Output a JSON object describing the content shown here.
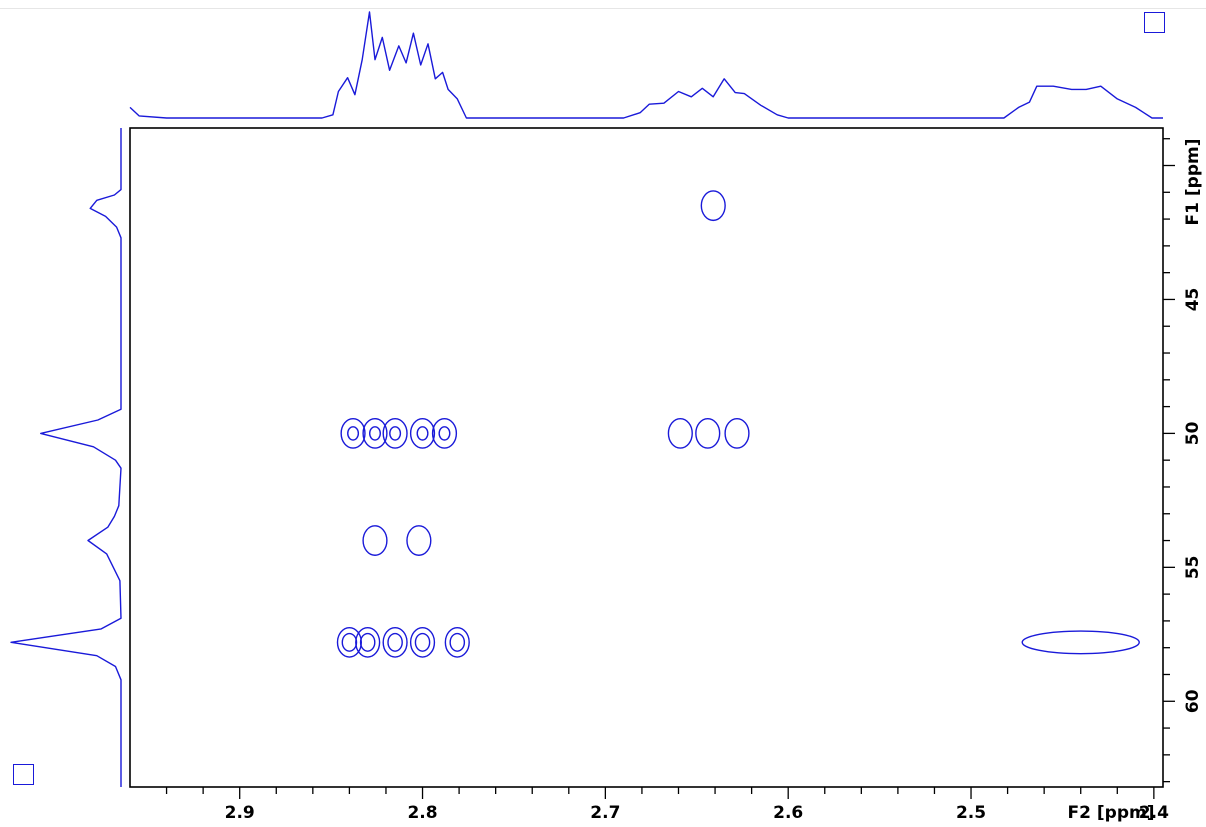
{
  "colors": {
    "spectrum": "#1a1ad9",
    "axis": "#000000",
    "background": "#ffffff"
  },
  "icons": {
    "corner_top_right": "square-outline-icon",
    "corner_bottom_left": "square-outline-icon"
  },
  "chart_data": {
    "type": "heatmap",
    "subtype": "2D NMR contour plot (HSQC)",
    "x_axis": {
      "label": "F2 [ppm]",
      "range": [
        2.96,
        2.395
      ],
      "reversed": true,
      "major_ticks": [
        2.9,
        2.8,
        2.7,
        2.6,
        2.5,
        2.4
      ],
      "tick_labels": [
        "2.9",
        "2.8",
        "2.7",
        "2.6",
        "2.5",
        "2.4"
      ],
      "minor_step": 0.02
    },
    "y_axis": {
      "label": "F1 [ppm]",
      "range": [
        38.6,
        63.2
      ],
      "reversed": false,
      "major_ticks": [
        45,
        50,
        55,
        60
      ],
      "tick_labels": [
        "45",
        "50",
        "55",
        "60"
      ],
      "minor_step": 1
    },
    "grid": false,
    "cross_peaks": [
      {
        "x": 2.641,
        "y": 41.5
      },
      {
        "x": 2.838,
        "y": 50.0
      },
      {
        "x": 2.826,
        "y": 50.0
      },
      {
        "x": 2.815,
        "y": 50.0
      },
      {
        "x": 2.8,
        "y": 50.0
      },
      {
        "x": 2.788,
        "y": 50.0
      },
      {
        "x": 2.659,
        "y": 50.0
      },
      {
        "x": 2.644,
        "y": 50.0
      },
      {
        "x": 2.628,
        "y": 50.0
      },
      {
        "x": 2.826,
        "y": 54.0
      },
      {
        "x": 2.802,
        "y": 54.0
      },
      {
        "x": 2.84,
        "y": 57.8
      },
      {
        "x": 2.83,
        "y": 57.8
      },
      {
        "x": 2.815,
        "y": 57.8
      },
      {
        "x": 2.8,
        "y": 57.8
      },
      {
        "x": 2.781,
        "y": 57.8
      },
      {
        "x": 2.44,
        "y": 57.8
      }
    ],
    "f2_projection": {
      "points": [
        [
          2.96,
          0.1
        ],
        [
          2.955,
          0.02
        ],
        [
          2.94,
          0.0
        ],
        [
          2.855,
          0.0
        ],
        [
          2.849,
          0.03
        ],
        [
          2.846,
          0.25
        ],
        [
          2.841,
          0.38
        ],
        [
          2.837,
          0.22
        ],
        [
          2.833,
          0.55
        ],
        [
          2.829,
          1.0
        ],
        [
          2.826,
          0.55
        ],
        [
          2.822,
          0.76
        ],
        [
          2.818,
          0.45
        ],
        [
          2.813,
          0.68
        ],
        [
          2.809,
          0.52
        ],
        [
          2.805,
          0.8
        ],
        [
          2.801,
          0.5
        ],
        [
          2.797,
          0.7
        ],
        [
          2.793,
          0.37
        ],
        [
          2.789,
          0.43
        ],
        [
          2.786,
          0.27
        ],
        [
          2.781,
          0.18
        ],
        [
          2.776,
          0.0
        ],
        [
          2.69,
          0.0
        ],
        [
          2.681,
          0.05
        ],
        [
          2.676,
          0.13
        ],
        [
          2.668,
          0.14
        ],
        [
          2.66,
          0.25
        ],
        [
          2.653,
          0.2
        ],
        [
          2.647,
          0.28
        ],
        [
          2.641,
          0.2
        ],
        [
          2.635,
          0.37
        ],
        [
          2.629,
          0.24
        ],
        [
          2.624,
          0.23
        ],
        [
          2.615,
          0.12
        ],
        [
          2.606,
          0.03
        ],
        [
          2.6,
          0.0
        ],
        [
          2.482,
          0.0
        ],
        [
          2.474,
          0.1
        ],
        [
          2.468,
          0.15
        ],
        [
          2.464,
          0.3
        ],
        [
          2.455,
          0.3
        ],
        [
          2.445,
          0.27
        ],
        [
          2.437,
          0.27
        ],
        [
          2.429,
          0.3
        ],
        [
          2.42,
          0.18
        ],
        [
          2.41,
          0.1
        ],
        [
          2.401,
          0.0
        ],
        [
          2.395,
          0.0
        ]
      ]
    },
    "f1_projection": {
      "points": [
        [
          38.6,
          0.0
        ],
        [
          40.9,
          0.0
        ],
        [
          41.1,
          0.06
        ],
        [
          41.3,
          0.22
        ],
        [
          41.6,
          0.28
        ],
        [
          41.9,
          0.14
        ],
        [
          42.3,
          0.04
        ],
        [
          42.7,
          0.0
        ],
        [
          49.1,
          0.0
        ],
        [
          49.5,
          0.21
        ],
        [
          50.0,
          0.73
        ],
        [
          50.5,
          0.25
        ],
        [
          51.0,
          0.05
        ],
        [
          51.3,
          0.0
        ],
        [
          52.7,
          0.02
        ],
        [
          53.1,
          0.06
        ],
        [
          53.5,
          0.12
        ],
        [
          54.0,
          0.3
        ],
        [
          54.5,
          0.13
        ],
        [
          55.0,
          0.07
        ],
        [
          55.5,
          0.01
        ],
        [
          56.9,
          0.0
        ],
        [
          57.3,
          0.18
        ],
        [
          57.8,
          1.0
        ],
        [
          58.3,
          0.22
        ],
        [
          58.7,
          0.05
        ],
        [
          59.2,
          0.0
        ],
        [
          63.2,
          0.0
        ]
      ]
    }
  }
}
